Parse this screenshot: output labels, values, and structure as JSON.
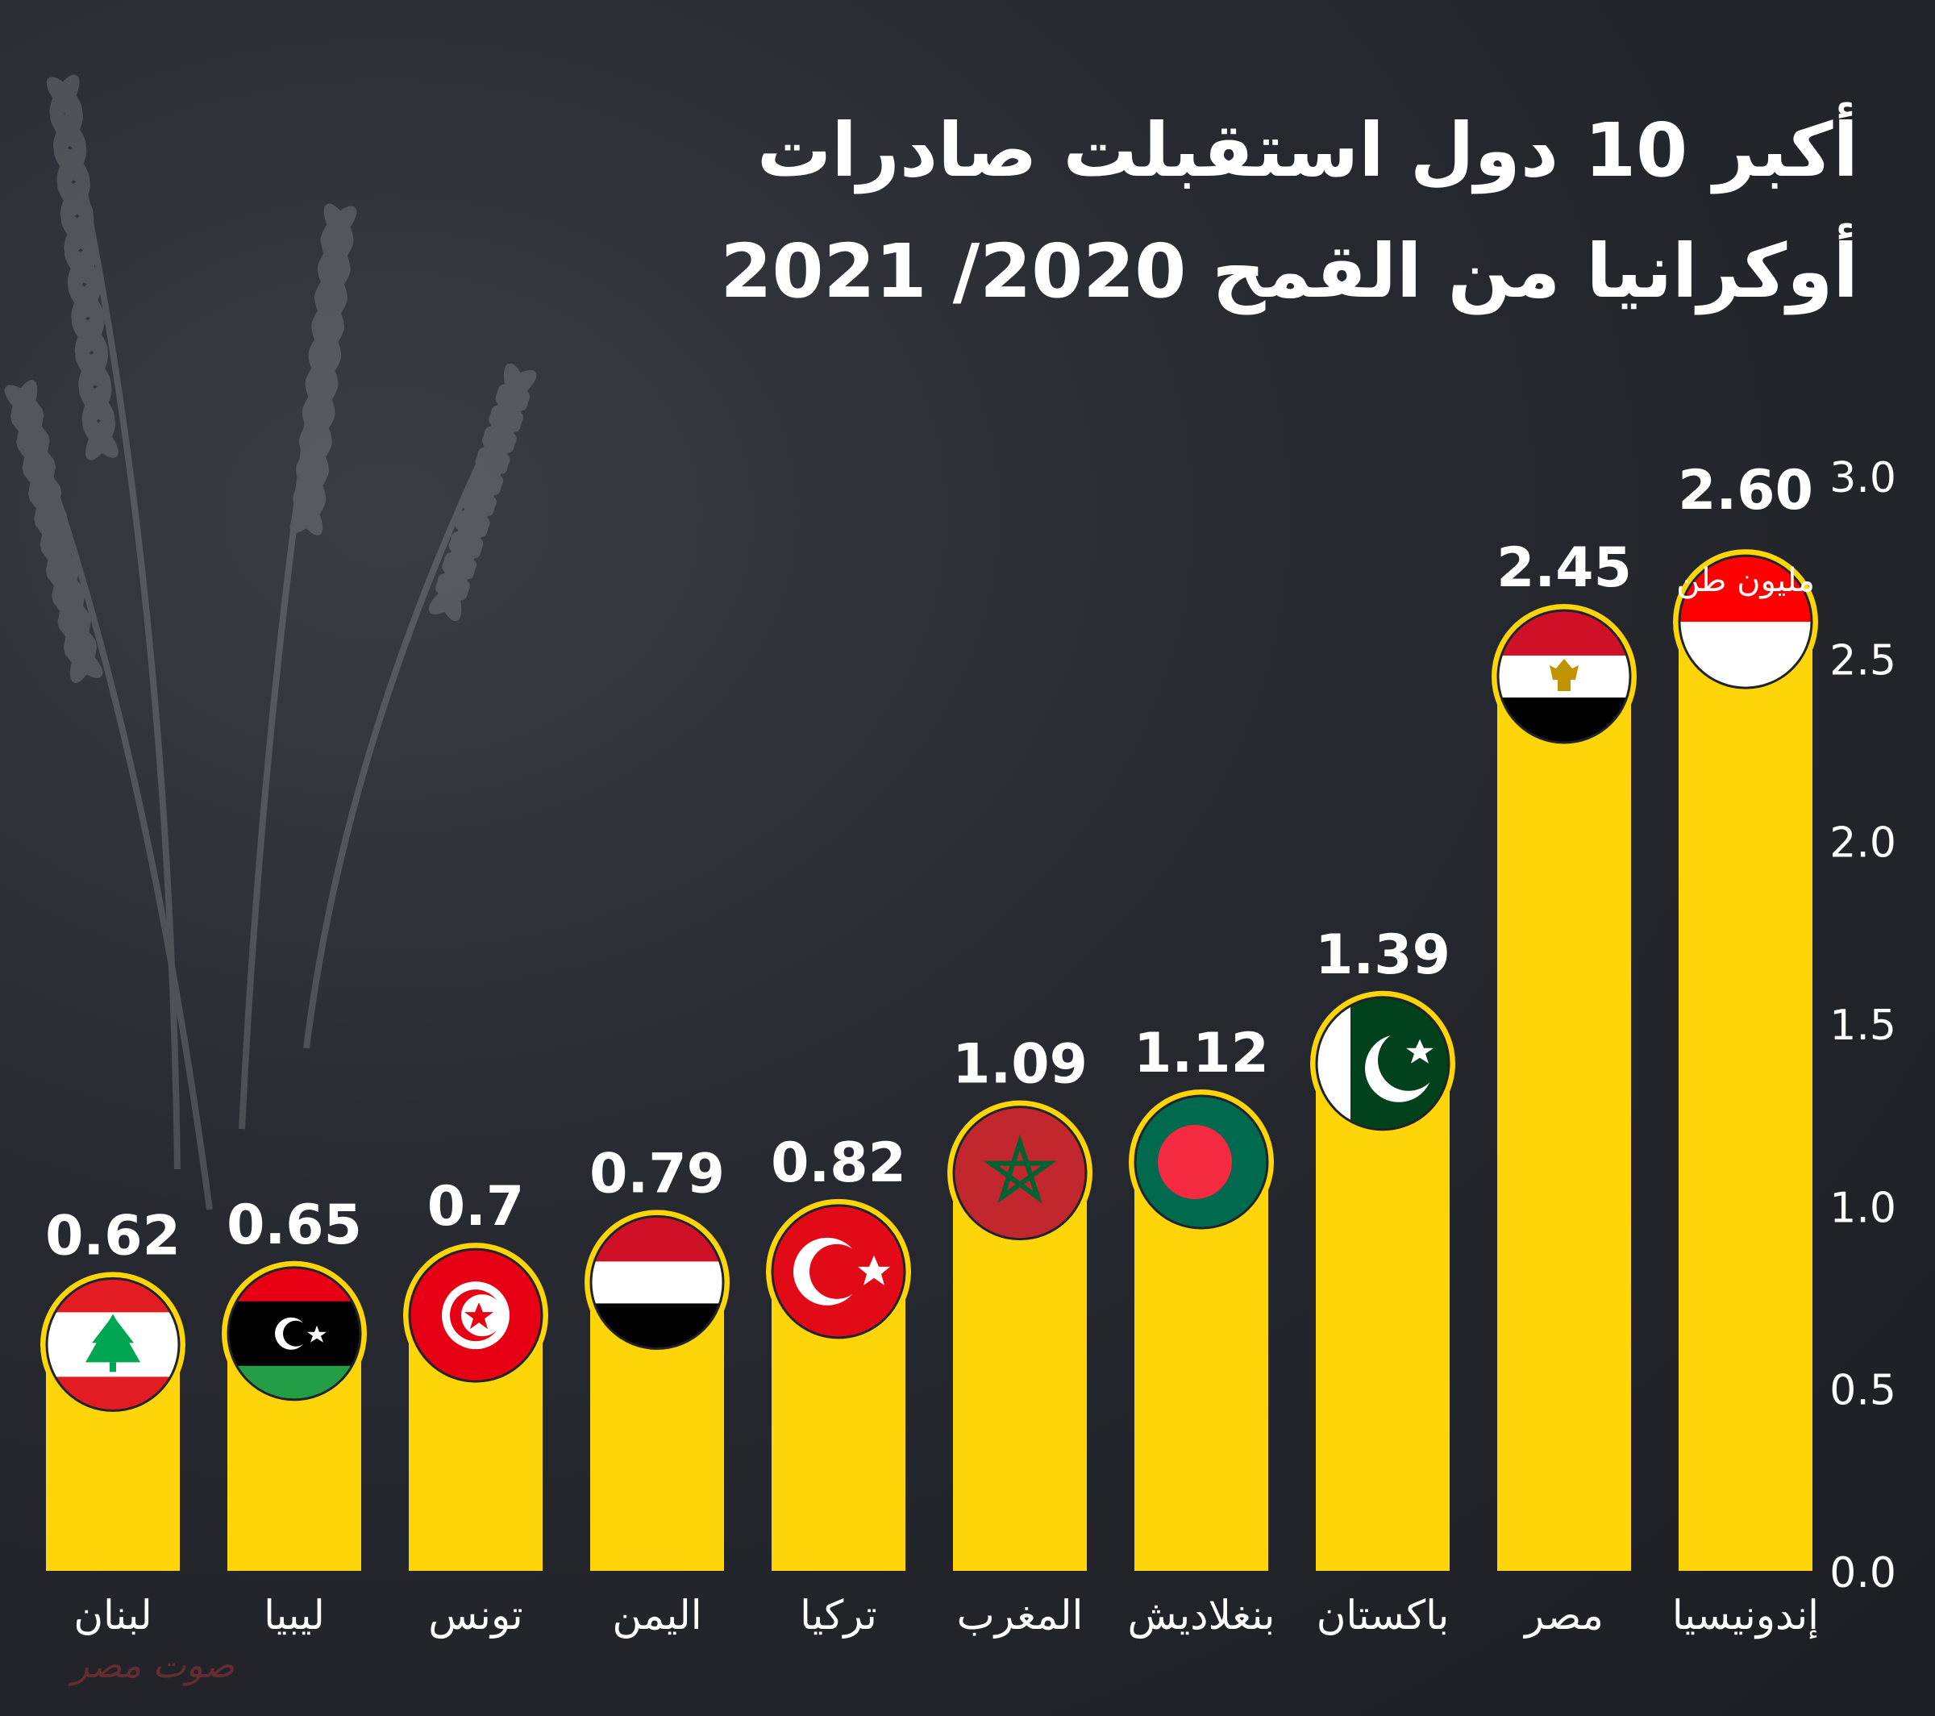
{
  "header": {
    "title_line1": "أكبر 10 دول استقبلت صادرات",
    "title_line2": "أوكرانيا من القمح 2020/ 2021"
  },
  "chart_data": {
    "type": "bar",
    "categories": [
      "لبنان",
      "ليبيا",
      "تونس",
      "اليمن",
      "تركيا",
      "المغرب",
      "بنغلاديش",
      "باكستان",
      "مصر",
      "إندونيسيا"
    ],
    "values": [
      0.62,
      0.65,
      0.7,
      0.79,
      0.82,
      1.09,
      1.12,
      1.39,
      2.45,
      2.6
    ],
    "value_labels": [
      "0.62",
      "0.65",
      "0.7",
      "0.79",
      "0.82",
      "1.09",
      "1.12",
      "1.39",
      "2.45",
      "2.60"
    ],
    "unit_label": "مليون طن",
    "yticks": [
      "0.0",
      "0.5",
      "1.0",
      "1.5",
      "2.0",
      "2.5",
      "3.0"
    ],
    "ylim": [
      0,
      3
    ],
    "grid": false,
    "axis_position": "right",
    "bar_color": "#fdd508",
    "flags": [
      "lebanon-flag-icon",
      "libya-flag-icon",
      "tunisia-flag-icon",
      "yemen-flag-icon",
      "turkey-flag-icon",
      "morocco-flag-icon",
      "bangladesh-flag-icon",
      "pakistan-flag-icon",
      "egypt-flag-icon",
      "indonesia-flag-icon"
    ]
  },
  "watermark": "صوت مصر"
}
